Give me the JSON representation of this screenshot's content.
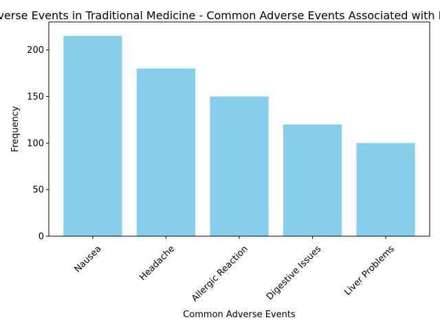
{
  "chart_data": {
    "type": "bar",
    "title": "Adverse Events in Traditional Medicine - Common Adverse Events Associated with Botanicals",
    "xlabel": "Common Adverse Events",
    "ylabel": "Frequency",
    "categories": [
      "Nausea",
      "Headache",
      "Allergic Reaction",
      "Digestive Issues",
      "Liver Problems"
    ],
    "values": [
      215,
      180,
      150,
      120,
      100
    ],
    "ylim": [
      0,
      230
    ],
    "yticks": [
      0,
      50,
      100,
      150,
      200
    ],
    "xtick_rotation": 45,
    "bar_color": "#87ceeb",
    "grid": false,
    "legend": "none"
  }
}
